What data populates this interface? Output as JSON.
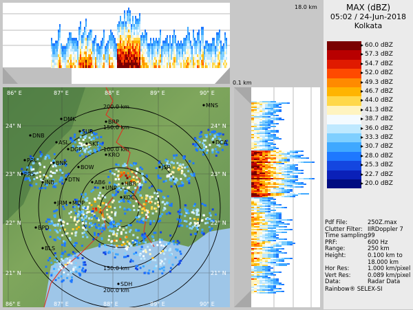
{
  "header": {
    "title": "MAX (dBZ)",
    "datetime": "05:02 / 24-Jun-2018",
    "station": "Kolkata"
  },
  "scales": {
    "top_height_max": "18.0 km",
    "side_height_min": "0.1 km"
  },
  "colorbar": [
    {
      "label": "60.0 dBZ",
      "color": "#7a0000"
    },
    {
      "label": "57.3 dBZ",
      "color": "#b80000"
    },
    {
      "label": "54.7 dBZ",
      "color": "#e01a00"
    },
    {
      "label": "52.0 dBZ",
      "color": "#ff4a00"
    },
    {
      "label": "49.3 dBZ",
      "color": "#ff8a00"
    },
    {
      "label": "46.7 dBZ",
      "color": "#ffb400"
    },
    {
      "label": "44.0 dBZ",
      "color": "#ffd84a"
    },
    {
      "label": "41.3 dBZ",
      "color": "#fff4c0"
    },
    {
      "label": "38.7 dBZ",
      "color": "#f4fbff"
    },
    {
      "label": "36.0 dBZ",
      "color": "#bfe9ff"
    },
    {
      "label": "33.3 dBZ",
      "color": "#7fcfff"
    },
    {
      "label": "30.7 dBZ",
      "color": "#3fa8ff"
    },
    {
      "label": "28.0 dBZ",
      "color": "#1e78ff"
    },
    {
      "label": "25.3 dBZ",
      "color": "#1446e0"
    },
    {
      "label": "22.7 dBZ",
      "color": "#0a20b8"
    },
    {
      "label": "20.0 dBZ",
      "color": "#000c80"
    }
  ],
  "metadata": [
    {
      "key": "Pdf File:",
      "value": "250Z.max"
    },
    {
      "key": "Clutter Filter:",
      "value": "IIRDoppler 7"
    },
    {
      "key": "Time sampling:",
      "value": "99"
    },
    {
      "key": "PRF:",
      "value": "600 Hz"
    },
    {
      "key": "Range:",
      "value": "250 km"
    },
    {
      "key": "Height:",
      "value": "0.100 km to"
    },
    {
      "key": "",
      "value": "18.000 km"
    },
    {
      "key": "Hor Res:",
      "value": "1.000 km/pixel"
    },
    {
      "key": "Vert Res:",
      "value": "0.089 km/pixel"
    },
    {
      "key": "Data:",
      "value": "Radar Data"
    }
  ],
  "footer": "Rainbow® SELEX-SI",
  "map": {
    "lon_labels_top": [
      "86° E",
      "87° E",
      "88° E",
      "89° E",
      "90° E"
    ],
    "lon_labels_bottom": [
      "86° E",
      "87° E",
      "88° E",
      "89° E",
      "90° E"
    ],
    "lat_labels_left": [
      "24° N",
      "23° N",
      "22° N",
      "21° N"
    ],
    "lat_labels_right": [
      "24° N",
      "23° N",
      "22° N",
      "21° N"
    ],
    "range_rings_top": [
      "200.0 km",
      "150.0 km",
      "100.0 km"
    ],
    "range_rings_bottom": [
      "150.0 km",
      "200.0 km"
    ],
    "cities": [
      "DMK",
      "BRP",
      "MNS",
      "DNB",
      "SUR",
      "ASL",
      "SKT",
      "DGP",
      "KRO",
      "DCA",
      "PRL",
      "BNK",
      "BOW",
      "JSR",
      "DTN",
      "AB6",
      "HBR",
      "JNB",
      "PRS",
      "UNP",
      "JRM",
      "MDP",
      "KOC",
      "BPD",
      "BLS",
      "SDH"
    ]
  }
}
